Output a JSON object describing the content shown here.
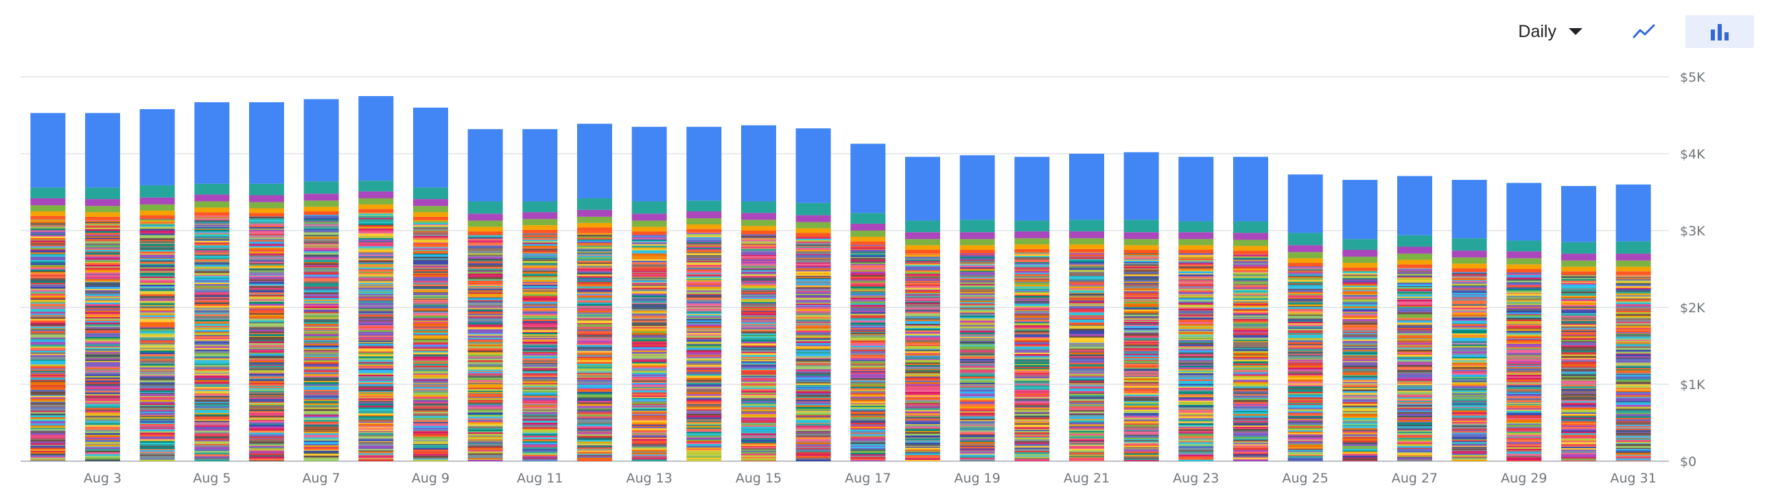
{
  "controls": {
    "period": "Daily",
    "views": [
      {
        "name": "line",
        "icon": "line-chart-icon",
        "active": false
      },
      {
        "name": "bar",
        "icon": "bar-chart-icon",
        "active": true
      }
    ]
  },
  "colors": {
    "top_segment": "#4285f4",
    "gridline": "#e8eaed",
    "axis_text": "#70757a",
    "palette": [
      "#ff5722",
      "#f4a300",
      "#7cb342",
      "#ab47bc",
      "#26a69a",
      "#ef6c00",
      "#5c6bc0",
      "#ec407a",
      "#8d6e63",
      "#78909c",
      "#26c6da",
      "#e53935",
      "#9ccc65",
      "#7e57c2",
      "#ffca28",
      "#455a64",
      "#d81b60",
      "#00897b",
      "#f06292",
      "#3949ab",
      "#c0ca33",
      "#6d4c41",
      "#29b6f6",
      "#ff7043"
    ]
  },
  "chart_data": {
    "type": "bar",
    "stacked": true,
    "categories": [
      "Aug 2",
      "Aug 3",
      "Aug 4",
      "Aug 5",
      "Aug 6",
      "Aug 7",
      "Aug 8",
      "Aug 9",
      "Aug 10",
      "Aug 11",
      "Aug 12",
      "Aug 13",
      "Aug 14",
      "Aug 15",
      "Aug 16",
      "Aug 17",
      "Aug 18",
      "Aug 19",
      "Aug 20",
      "Aug 21",
      "Aug 22",
      "Aug 23",
      "Aug 24",
      "Aug 25",
      "Aug 26",
      "Aug 27",
      "Aug 28",
      "Aug 29",
      "Aug 30",
      "Aug 31"
    ],
    "x_tick_labels": [
      "Aug 3",
      "Aug 5",
      "Aug 7",
      "Aug 9",
      "Aug 11",
      "Aug 13",
      "Aug 15",
      "Aug 17",
      "Aug 19",
      "Aug 21",
      "Aug 23",
      "Aug 25",
      "Aug 27",
      "Aug 29",
      "Aug 31"
    ],
    "totals": [
      4530,
      4530,
      4580,
      4670,
      4670,
      4710,
      4750,
      4600,
      4320,
      4320,
      4390,
      4350,
      4350,
      4370,
      4330,
      4130,
      3960,
      3980,
      3960,
      4000,
      4020,
      3960,
      3960,
      3730,
      3660,
      3710,
      3660,
      3620,
      3580,
      3600
    ],
    "top_segment_values": [
      970,
      970,
      990,
      1060,
      1060,
      1070,
      1100,
      1040,
      940,
      940,
      970,
      970,
      960,
      990,
      970,
      900,
      830,
      840,
      830,
      860,
      880,
      840,
      840,
      760,
      770,
      770,
      760,
      750,
      730,
      740
    ],
    "y_ticks": [
      {
        "value": 0,
        "label": "$0"
      },
      {
        "value": 1000,
        "label": "$1K"
      },
      {
        "value": 2000,
        "label": "$2K"
      },
      {
        "value": 3000,
        "label": "$3K"
      },
      {
        "value": 4000,
        "label": "$4K"
      },
      {
        "value": 5000,
        "label": "$5K"
      }
    ],
    "ylim": [
      0,
      5000
    ],
    "y_axis_position": "right",
    "grid": true,
    "legend": "none"
  }
}
